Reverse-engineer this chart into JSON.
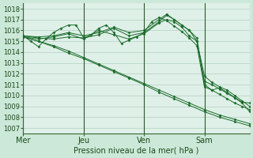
{
  "xlabel": "Pression niveau de la mer( hPa )",
  "bg_color": "#cce8d8",
  "plot_bg_color": "#dff0e8",
  "grid_color": "#a8c8b8",
  "line_color": "#1a6b2a",
  "marker_color": "#1a6b2a",
  "ylim": [
    1006.5,
    1018.5
  ],
  "yticks": [
    1007,
    1008,
    1009,
    1010,
    1011,
    1012,
    1013,
    1014,
    1015,
    1016,
    1017,
    1018
  ],
  "day_ticks": [
    0,
    24,
    48,
    72
  ],
  "day_labels": [
    "Mer",
    "Jeu",
    "Ven",
    "Sam"
  ],
  "xlim": [
    0,
    90
  ],
  "series": [
    [
      0,
      1015.4,
      6,
      1015.0,
      12,
      1014.5,
      18,
      1013.9,
      24,
      1013.4,
      30,
      1012.8,
      36,
      1012.2,
      42,
      1011.6,
      48,
      1011.0,
      54,
      1010.3,
      60,
      1009.7,
      66,
      1009.1,
      72,
      1008.5,
      78,
      1008.0,
      84,
      1007.6,
      90,
      1007.2
    ],
    [
      0,
      1015.4,
      6,
      1015.0,
      12,
      1014.6,
      18,
      1014.1,
      24,
      1013.5,
      30,
      1012.9,
      36,
      1012.3,
      42,
      1011.7,
      48,
      1011.1,
      54,
      1010.5,
      60,
      1009.9,
      66,
      1009.3,
      72,
      1008.7,
      78,
      1008.2,
      84,
      1007.8,
      90,
      1007.4
    ],
    [
      0,
      1015.5,
      6,
      1015.3,
      12,
      1015.2,
      18,
      1015.4,
      24,
      1015.3,
      30,
      1015.6,
      36,
      1016.2,
      42,
      1015.5,
      48,
      1015.8,
      54,
      1016.8,
      57,
      1017.4,
      60,
      1017.0,
      63,
      1016.5,
      66,
      1016.0,
      69,
      1015.3,
      72,
      1011.0,
      75,
      1010.5,
      78,
      1010.1,
      81,
      1009.7,
      84,
      1009.3,
      87,
      1009.0,
      90,
      1008.7
    ],
    [
      0,
      1015.5,
      6,
      1015.4,
      12,
      1015.5,
      18,
      1015.8,
      24,
      1015.5,
      30,
      1015.8,
      36,
      1016.3,
      42,
      1015.8,
      48,
      1016.0,
      54,
      1017.0,
      57,
      1017.5,
      60,
      1017.0,
      63,
      1016.5,
      66,
      1016.0,
      69,
      1015.0,
      72,
      1011.3,
      75,
      1011.0,
      78,
      1010.6,
      81,
      1010.2,
      84,
      1009.8,
      87,
      1009.3,
      90,
      1008.5
    ],
    [
      0,
      1015.4,
      6,
      1015.2,
      12,
      1015.4,
      18,
      1015.7,
      24,
      1015.2,
      30,
      1016.0,
      36,
      1015.6,
      42,
      1015.2,
      48,
      1015.7,
      54,
      1016.7,
      57,
      1017.0,
      60,
      1016.8,
      63,
      1016.3,
      66,
      1015.5,
      69,
      1015.0,
      72,
      1011.8,
      75,
      1011.2,
      78,
      1010.8,
      81,
      1010.5,
      84,
      1010.0,
      87,
      1009.5,
      90,
      1009.0
    ],
    [
      0,
      1015.5,
      3,
      1015.0,
      6,
      1014.5,
      9,
      1015.2,
      12,
      1015.8,
      15,
      1016.2,
      18,
      1016.5,
      21,
      1016.5,
      24,
      1015.3,
      27,
      1015.6,
      30,
      1016.2,
      33,
      1016.5,
      36,
      1015.8,
      39,
      1014.8,
      42,
      1015.1,
      45,
      1015.4,
      48,
      1015.8,
      51,
      1016.8,
      54,
      1017.2,
      57,
      1016.9,
      60,
      1016.4,
      63,
      1015.9,
      66,
      1015.3,
      69,
      1014.6,
      72,
      1010.8,
      75,
      1010.5,
      78,
      1010.7,
      81,
      1010.3,
      84,
      1009.8,
      87,
      1009.4,
      90,
      1009.3
    ]
  ]
}
